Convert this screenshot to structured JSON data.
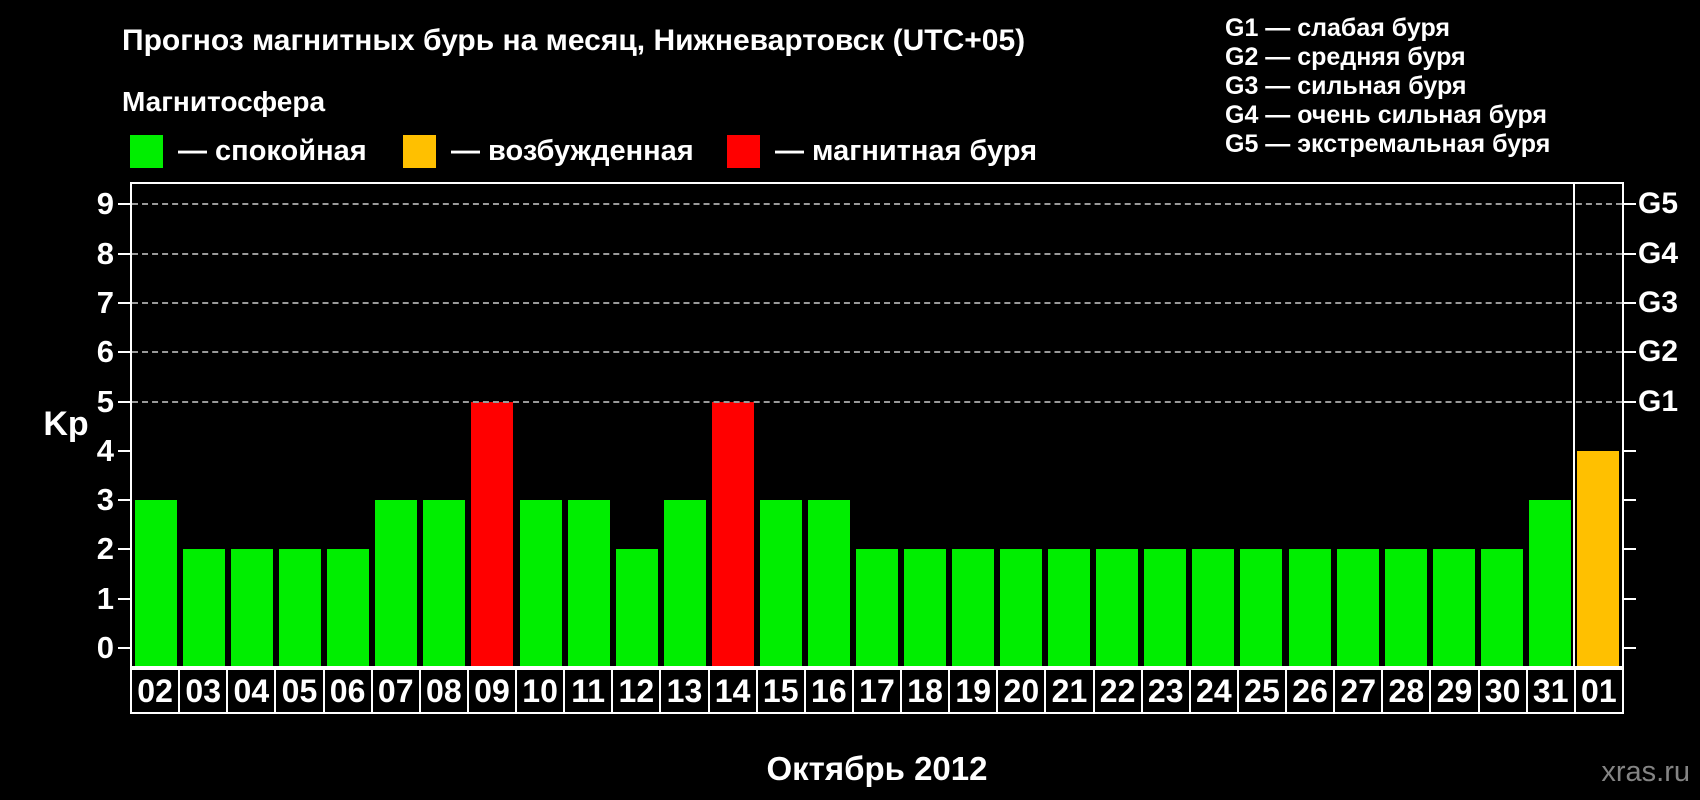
{
  "header": {
    "title": "Прогноз магнитных бурь на месяц, Нижневартовск (UTC+05)",
    "watermark": "xras.ru"
  },
  "legend": {
    "title": "Магнитосфера",
    "items": [
      {
        "name": "quiet",
        "label": "— спокойная",
        "color": "#00ee00"
      },
      {
        "name": "excited",
        "label": "— возбужденная",
        "color": "#ffc000"
      },
      {
        "name": "storm",
        "label": "— магнитная буря",
        "color": "#ff0000"
      }
    ]
  },
  "g_legend": {
    "items": [
      "G1 — слабая буря",
      "G2 — средняя буря",
      "G3 — сильная буря",
      "G4 — очень сильная буря",
      "G5 — экстремальная буря"
    ]
  },
  "colors": {
    "quiet": "#00ee00",
    "excited": "#ffc000",
    "storm": "#ff0000",
    "axis": "#ffffff",
    "grid": "#9a9a9a",
    "watermark": "#848484"
  },
  "chart_data": {
    "type": "bar",
    "title": "Прогноз магнитных бурь на месяц, Нижневартовск (UTC+05)",
    "xlabel": "Октябрь 2012",
    "ylabel": "Kp",
    "ylim": [
      0,
      9
    ],
    "y_ticks": [
      0,
      1,
      2,
      3,
      4,
      5,
      6,
      7,
      8,
      9
    ],
    "grid_levels": [
      5,
      6,
      7,
      8,
      9
    ],
    "grid_style": "dashed",
    "legend_position": "top-left",
    "categories": [
      "02",
      "03",
      "04",
      "05",
      "06",
      "07",
      "08",
      "09",
      "10",
      "11",
      "12",
      "13",
      "14",
      "15",
      "16",
      "17",
      "18",
      "19",
      "20",
      "21",
      "22",
      "23",
      "24",
      "25",
      "26",
      "27",
      "28",
      "29",
      "30",
      "31",
      "01"
    ],
    "values": [
      3,
      2,
      2,
      2,
      2,
      3,
      3,
      5,
      3,
      3,
      2,
      3,
      5,
      3,
      3,
      2,
      2,
      2,
      2,
      2,
      2,
      2,
      2,
      2,
      2,
      2,
      2,
      2,
      2,
      3,
      4
    ],
    "states": [
      "quiet",
      "quiet",
      "quiet",
      "quiet",
      "quiet",
      "quiet",
      "quiet",
      "storm",
      "quiet",
      "quiet",
      "quiet",
      "quiet",
      "storm",
      "quiet",
      "quiet",
      "quiet",
      "quiet",
      "quiet",
      "quiet",
      "quiet",
      "quiet",
      "quiet",
      "quiet",
      "quiet",
      "quiet",
      "quiet",
      "quiet",
      "quiet",
      "quiet",
      "quiet",
      "excited"
    ],
    "right_axis": {
      "labels": [
        "G1",
        "G2",
        "G3",
        "G4",
        "G5"
      ],
      "at_kp": [
        5,
        6,
        7,
        8,
        9
      ]
    },
    "month_separator_before_index": 30
  }
}
